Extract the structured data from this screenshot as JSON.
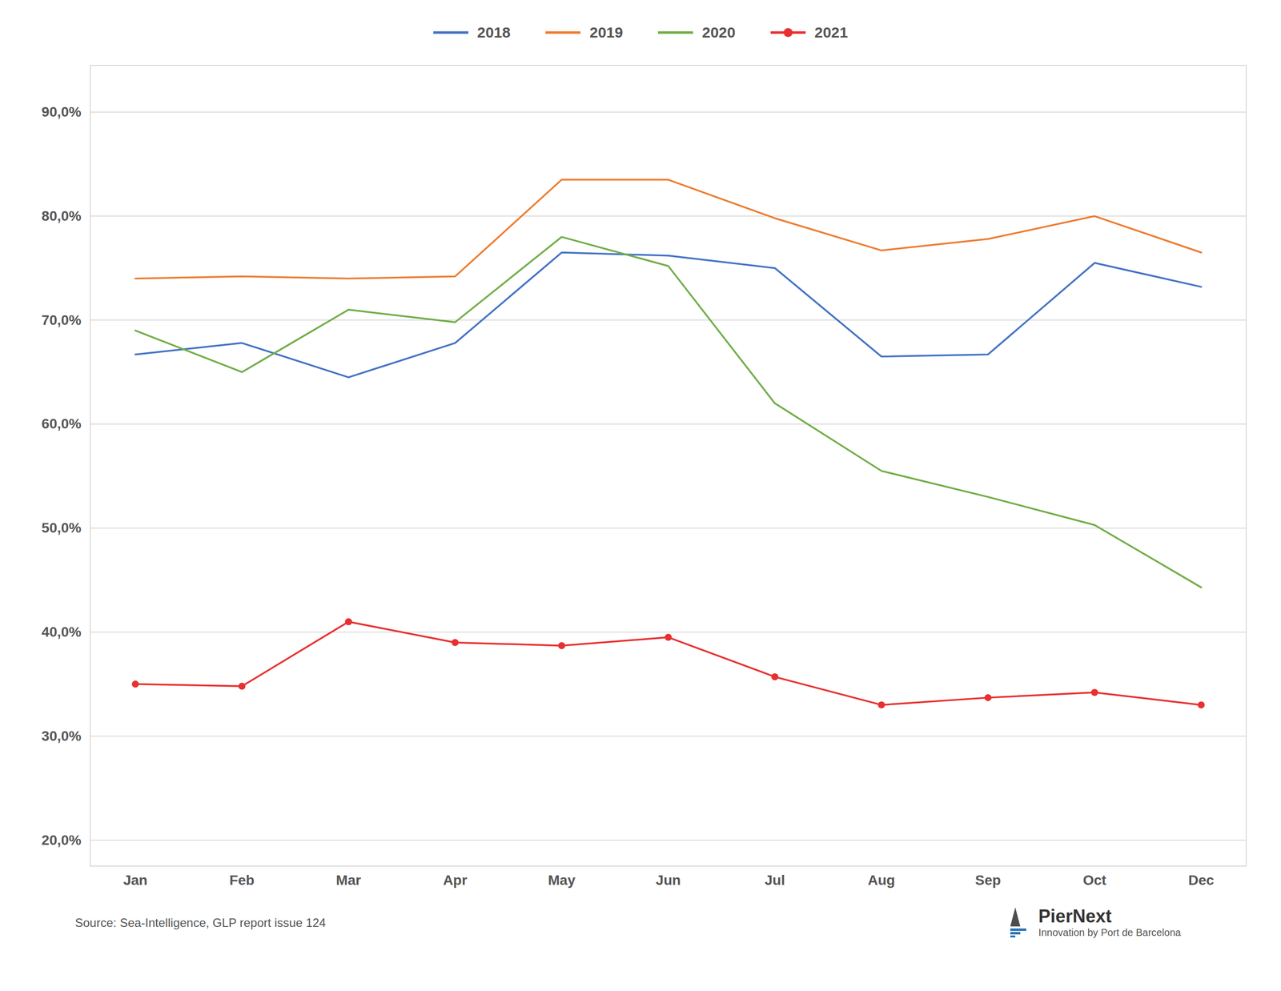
{
  "chart_data": {
    "type": "line",
    "categories": [
      "Jan",
      "Feb",
      "Mar",
      "Apr",
      "May",
      "Jun",
      "Jul",
      "Aug",
      "Sep",
      "Oct",
      "Dec"
    ],
    "series": [
      {
        "name": "2018",
        "color": "#4472C4",
        "values": [
          0.667,
          0.678,
          0.645,
          0.678,
          0.765,
          0.762,
          0.75,
          0.665,
          0.667,
          0.755,
          0.732
        ]
      },
      {
        "name": "2019",
        "color": "#ED7D31",
        "values": [
          0.74,
          0.742,
          0.74,
          0.742,
          0.835,
          0.835,
          0.798,
          0.767,
          0.778,
          0.8,
          0.765
        ]
      },
      {
        "name": "2020",
        "color": "#70AD47",
        "values": [
          0.69,
          0.65,
          0.71,
          0.698,
          0.78,
          0.752,
          0.62,
          0.555,
          0.53,
          0.503,
          0.443
        ]
      },
      {
        "name": "2021",
        "color": "#E83030",
        "marker": "circle",
        "values": [
          0.35,
          0.348,
          0.41,
          0.39,
          0.387,
          0.395,
          0.357,
          0.33,
          0.337,
          0.342,
          0.33
        ]
      }
    ],
    "ylim": [
      0.175,
      0.945
    ],
    "yticks": [
      {
        "value": 0.2,
        "label": "20,0%"
      },
      {
        "value": 0.3,
        "label": "30,0%"
      },
      {
        "value": 0.4,
        "label": "40,0%"
      },
      {
        "value": 0.5,
        "label": "50,0%"
      },
      {
        "value": 0.6,
        "label": "60,0%"
      },
      {
        "value": 0.7,
        "label": "70,0%"
      },
      {
        "value": 0.8,
        "label": "80,0%"
      },
      {
        "value": 0.9,
        "label": "90,0%"
      }
    ],
    "grid": true,
    "legend": "top",
    "annotations": [
      "Source: Sea-Intelligence, GLP report issue 124",
      "PierNext",
      "Innovation by Port de Barcelona"
    ]
  }
}
